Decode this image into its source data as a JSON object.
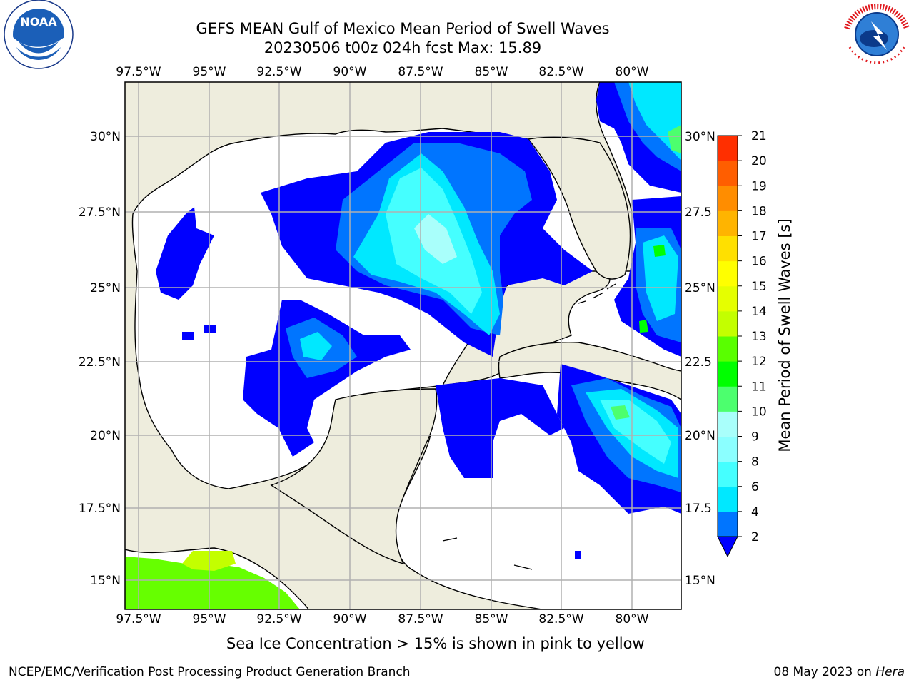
{
  "title": {
    "line1": "GEFS MEAN Gulf of Mexico Mean Period of Swell Waves",
    "line2": "20230506 t00z 024h fcst   Max: 15.89"
  },
  "map": {
    "lon_ticks_top": [
      "97.5°W",
      "95°W",
      "92.5°W",
      "90°W",
      "87.5°W",
      "85°W",
      "82.5°W",
      "80°W"
    ],
    "lon_ticks_bottom": [
      "97.5°W",
      "95°W",
      "92.5°W",
      "90°W",
      "87.5°W",
      "85°W",
      "82.5°W",
      "80°W"
    ],
    "lat_ticks_left": [
      "30°N",
      "27.5°N",
      "25°N",
      "22.5°N",
      "20°N",
      "17.5°N",
      "15°N"
    ],
    "lat_ticks_right": [
      "30°N",
      "27.5",
      "25°N",
      "22.5",
      "20°N",
      "17.5",
      "15°N"
    ],
    "land_color": "#eeeddd",
    "ocean_color": "#ffffff",
    "grid_color": "#b0b0b0"
  },
  "colorbar": {
    "label": "Mean Period of Swell Waves [s]",
    "ticks": [
      "21",
      "20",
      "19",
      "18",
      "17",
      "16",
      "15",
      "14",
      "13",
      "12",
      "11",
      "10",
      "9",
      "8",
      "6",
      "4",
      "2"
    ],
    "colors": [
      "#0000ff",
      "#0075ff",
      "#00e8ff",
      "#45ffff",
      "#8bffff",
      "#a9fffb",
      "#4cff6e",
      "#00ff00",
      "#59ff00",
      "#c3ff00",
      "#e5ff00",
      "#ffff00",
      "#ffe000",
      "#ffb400",
      "#ff8d00",
      "#ff5e00",
      "#ff2f00",
      "#ff0000"
    ]
  },
  "footer": {
    "sea_ice_note": "Sea Ice Concentration > 15% is shown in pink to yellow",
    "credit_left": "NCEP/EMC/Verification Post Processing Product Generation Branch",
    "credit_right_date": "08 May 2023 on",
    "credit_right_host": "Hera"
  },
  "logos": {
    "noaa_text": "NOAA",
    "nws_text": "NATIONAL WEATHER SERVICE"
  }
}
